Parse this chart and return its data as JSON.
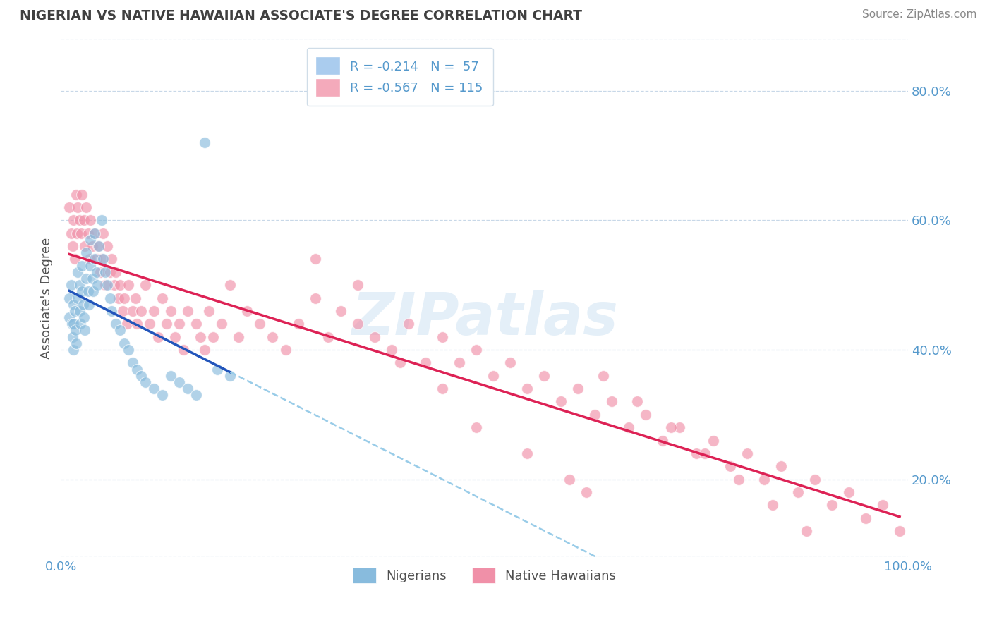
{
  "title": "NIGERIAN VS NATIVE HAWAIIAN ASSOCIATE'S DEGREE CORRELATION CHART",
  "source": "Source: ZipAtlas.com",
  "ylabel": "Associate's Degree",
  "watermark": "ZIPatlas",
  "legend_line1": "R = -0.214   N =  57",
  "legend_line2": "R = -0.567   N = 115",
  "legend_labels": [
    "Nigerians",
    "Native Hawaiians"
  ],
  "nigerian_color": "#88bbdd",
  "hawaiian_color": "#f090a8",
  "trendline_nigerian_color": "#2255bb",
  "trendline_hawaiian_color": "#dd2255",
  "trendline_ext_color": "#99cce8",
  "legend_patch_nig": "#aaccee",
  "legend_patch_haw": "#f4aabb",
  "background_color": "#ffffff",
  "grid_color": "#c8d8e8",
  "title_color": "#404040",
  "axis_label_color": "#5599cc",
  "xmin": 0.0,
  "xmax": 1.0,
  "ymin": 0.08,
  "ymax": 0.88,
  "yticks": [
    0.2,
    0.4,
    0.6,
    0.8
  ],
  "ytick_labels": [
    "20.0%",
    "40.0%",
    "60.0%",
    "80.0%"
  ],
  "xticks": [
    0.0,
    1.0
  ],
  "xtick_labels": [
    "0.0%",
    "100.0%"
  ],
  "nigerian_x": [
    0.01,
    0.01,
    0.012,
    0.013,
    0.014,
    0.015,
    0.015,
    0.015,
    0.016,
    0.017,
    0.018,
    0.02,
    0.02,
    0.022,
    0.022,
    0.023,
    0.025,
    0.025,
    0.026,
    0.027,
    0.028,
    0.03,
    0.03,
    0.032,
    0.033,
    0.035,
    0.035,
    0.037,
    0.038,
    0.04,
    0.04,
    0.042,
    0.043,
    0.045,
    0.048,
    0.05,
    0.052,
    0.055,
    0.058,
    0.06,
    0.065,
    0.07,
    0.075,
    0.08,
    0.085,
    0.09,
    0.095,
    0.1,
    0.11,
    0.12,
    0.13,
    0.14,
    0.15,
    0.16,
    0.17,
    0.185,
    0.2
  ],
  "nigerian_y": [
    0.48,
    0.45,
    0.5,
    0.44,
    0.42,
    0.47,
    0.44,
    0.4,
    0.46,
    0.43,
    0.41,
    0.52,
    0.48,
    0.5,
    0.46,
    0.44,
    0.53,
    0.49,
    0.47,
    0.45,
    0.43,
    0.55,
    0.51,
    0.49,
    0.47,
    0.57,
    0.53,
    0.51,
    0.49,
    0.58,
    0.54,
    0.52,
    0.5,
    0.56,
    0.6,
    0.54,
    0.52,
    0.5,
    0.48,
    0.46,
    0.44,
    0.43,
    0.41,
    0.4,
    0.38,
    0.37,
    0.36,
    0.35,
    0.34,
    0.33,
    0.36,
    0.35,
    0.34,
    0.33,
    0.72,
    0.37,
    0.36
  ],
  "hawaiian_x": [
    0.01,
    0.012,
    0.014,
    0.015,
    0.016,
    0.018,
    0.019,
    0.02,
    0.022,
    0.024,
    0.025,
    0.027,
    0.028,
    0.03,
    0.032,
    0.034,
    0.035,
    0.037,
    0.04,
    0.042,
    0.044,
    0.046,
    0.048,
    0.05,
    0.052,
    0.055,
    0.058,
    0.06,
    0.063,
    0.065,
    0.068,
    0.07,
    0.073,
    0.075,
    0.078,
    0.08,
    0.085,
    0.088,
    0.09,
    0.095,
    0.1,
    0.105,
    0.11,
    0.115,
    0.12,
    0.125,
    0.13,
    0.135,
    0.14,
    0.145,
    0.15,
    0.16,
    0.165,
    0.17,
    0.175,
    0.18,
    0.19,
    0.2,
    0.21,
    0.22,
    0.235,
    0.25,
    0.265,
    0.28,
    0.3,
    0.315,
    0.33,
    0.35,
    0.37,
    0.39,
    0.41,
    0.43,
    0.45,
    0.47,
    0.49,
    0.51,
    0.53,
    0.55,
    0.57,
    0.59,
    0.61,
    0.63,
    0.65,
    0.67,
    0.69,
    0.71,
    0.73,
    0.75,
    0.77,
    0.79,
    0.81,
    0.83,
    0.85,
    0.87,
    0.89,
    0.91,
    0.93,
    0.95,
    0.97,
    0.99,
    0.3,
    0.35,
    0.4,
    0.45,
    0.49,
    0.55,
    0.6,
    0.64,
    0.68,
    0.72,
    0.76,
    0.8,
    0.84,
    0.88,
    0.62
  ],
  "hawaiian_y": [
    0.62,
    0.58,
    0.56,
    0.6,
    0.54,
    0.64,
    0.58,
    0.62,
    0.6,
    0.58,
    0.64,
    0.6,
    0.56,
    0.62,
    0.58,
    0.54,
    0.6,
    0.56,
    0.58,
    0.54,
    0.56,
    0.52,
    0.54,
    0.58,
    0.5,
    0.56,
    0.52,
    0.54,
    0.5,
    0.52,
    0.48,
    0.5,
    0.46,
    0.48,
    0.44,
    0.5,
    0.46,
    0.48,
    0.44,
    0.46,
    0.5,
    0.44,
    0.46,
    0.42,
    0.48,
    0.44,
    0.46,
    0.42,
    0.44,
    0.4,
    0.46,
    0.44,
    0.42,
    0.4,
    0.46,
    0.42,
    0.44,
    0.5,
    0.42,
    0.46,
    0.44,
    0.42,
    0.4,
    0.44,
    0.48,
    0.42,
    0.46,
    0.44,
    0.42,
    0.4,
    0.44,
    0.38,
    0.42,
    0.38,
    0.4,
    0.36,
    0.38,
    0.34,
    0.36,
    0.32,
    0.34,
    0.3,
    0.32,
    0.28,
    0.3,
    0.26,
    0.28,
    0.24,
    0.26,
    0.22,
    0.24,
    0.2,
    0.22,
    0.18,
    0.2,
    0.16,
    0.18,
    0.14,
    0.16,
    0.12,
    0.54,
    0.5,
    0.38,
    0.34,
    0.28,
    0.24,
    0.2,
    0.36,
    0.32,
    0.28,
    0.24,
    0.2,
    0.16,
    0.12,
    0.18
  ]
}
